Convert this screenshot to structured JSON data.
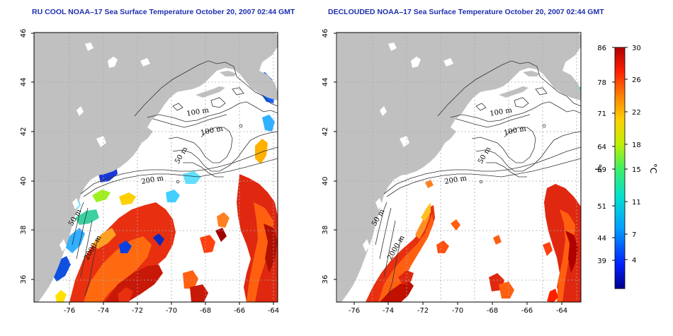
{
  "titles": {
    "left": "RU COOL NOAA–17 Sea Surface Temperature October 20, 2007 02:44 GMT",
    "right": "DECLOUDED NOAA–17 Sea Surface Temperature October 20, 2007 02:44 GMT"
  },
  "axes": {
    "lon_ticks": [
      "-76",
      "-74",
      "-72",
      "-70",
      "-68",
      "-66",
      "-64"
    ],
    "lat_ticks": [
      "36",
      "38",
      "40",
      "42",
      "44",
      "46"
    ]
  },
  "contour_labels": [
    "100 m",
    "100 m",
    "50 m",
    "200 m",
    "50 m",
    "2000 m"
  ],
  "colorbar": {
    "fahrenheit_ticks": [
      "86",
      "78",
      "71",
      "64",
      "59",
      "51",
      "44",
      "39"
    ],
    "celsius_ticks": [
      "30",
      "26",
      "22",
      "18",
      "15",
      "11",
      "7",
      "4"
    ],
    "unit_f": "°F",
    "unit_c": "°C",
    "colors": [
      "#00008c",
      "#0020ff",
      "#00a0ff",
      "#00e0d0",
      "#40f060",
      "#c0f000",
      "#ffd000",
      "#ff8000",
      "#ff2000",
      "#b00000"
    ]
  },
  "colors": {
    "land": "#c0c0c0",
    "title": "#1f2fae"
  }
}
